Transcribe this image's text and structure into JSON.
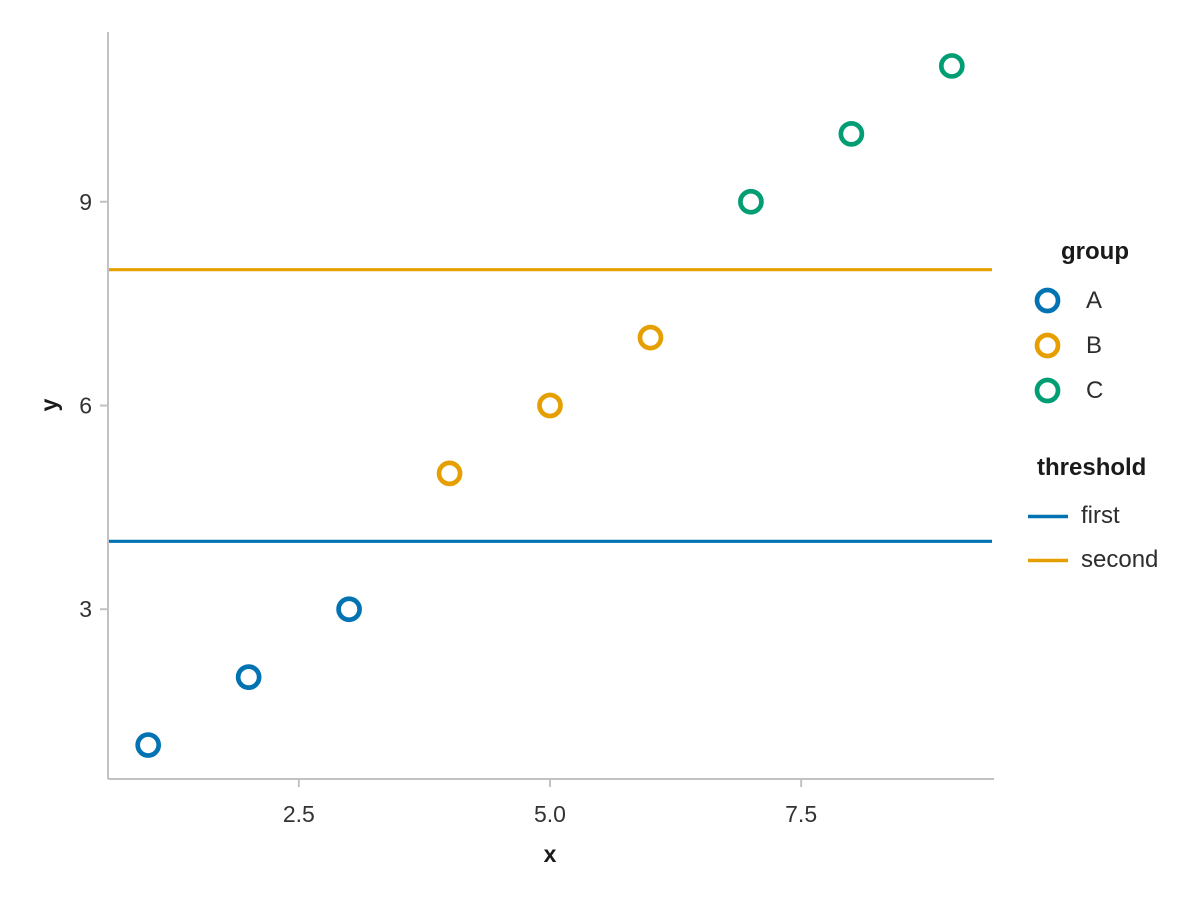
{
  "chart_data": {
    "type": "scatter",
    "title": "",
    "xlabel": "x",
    "ylabel": "y",
    "xlim": [
      0.6,
      9.4
    ],
    "ylim": [
      0.5,
      11.5
    ],
    "grid": false,
    "background": "#ffffff",
    "axis_color": "#c2c2c2",
    "tick_label_color": "#333333",
    "axis_title_color": "#1a1a1a",
    "x_ticks": {
      "values": [
        2.5,
        5.0,
        7.5
      ],
      "labels": [
        "2.5",
        "5.0",
        "7.5"
      ]
    },
    "y_ticks": {
      "values": [
        3,
        6,
        9
      ],
      "labels": [
        "3",
        "6",
        "9"
      ]
    },
    "series": [
      {
        "name": "A",
        "color": "#0173b2",
        "marker": "open-circle",
        "points": [
          [
            1,
            1
          ],
          [
            2,
            2
          ],
          [
            3,
            3
          ]
        ]
      },
      {
        "name": "B",
        "color": "#e69f00",
        "marker": "open-circle",
        "points": [
          [
            4,
            5
          ],
          [
            5,
            6
          ],
          [
            6,
            7
          ]
        ]
      },
      {
        "name": "C",
        "color": "#029e73",
        "marker": "open-circle",
        "points": [
          [
            7,
            9
          ],
          [
            8,
            10
          ],
          [
            9,
            11
          ]
        ]
      }
    ],
    "thresholds": [
      {
        "name": "first",
        "color": "#0173b2",
        "y": 4
      },
      {
        "name": "second",
        "color": "#e69f00",
        "y": 8
      }
    ],
    "legend_position": "right"
  },
  "legend": {
    "group_title": "group",
    "threshold_title": "threshold"
  }
}
